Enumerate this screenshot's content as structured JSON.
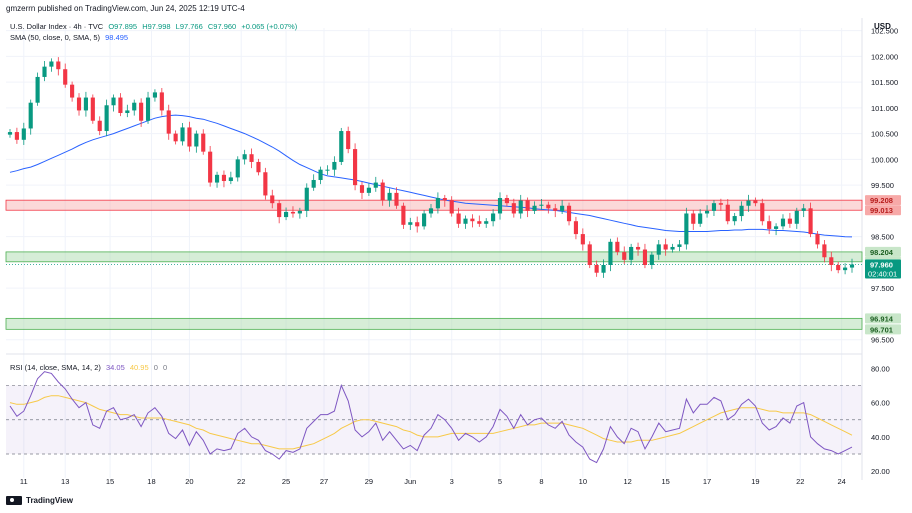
{
  "header": {
    "published": "gmzerrn published on TradingView.com, Jun 24, 2025 12:19 UTC-4",
    "currency": "USD"
  },
  "legend": {
    "symbol": "U.S. Dollar Index · 4h · TVC",
    "open": "O97.895",
    "high": "H97.998",
    "low": "L97.766",
    "close": "C97.960",
    "change": "+0.065 (+0.07%)",
    "sma_label": "SMA (50, close, 0, SMA, 5)",
    "sma_value": "98.495",
    "rsi_label": "RSI (14, close, SMA, 14, 2)",
    "rsi_value": "34.05",
    "rsi_sma_value": "40.95",
    "rsi_extra_1": "0",
    "rsi_extra_2": "0"
  },
  "footer": {
    "brand": "TradingView"
  },
  "colors": {
    "up": "#089981",
    "down": "#f23645",
    "sma": "#2962ff",
    "rsi": "#7e57c2",
    "rsi_ma": "#f7c948",
    "resistance_zone": "#f7a9a8",
    "support_zone": "#a5d6a7"
  },
  "chart_data": {
    "type": "candlestick",
    "y_axis": {
      "ticks": [
        "102.500",
        "102.000",
        "101.500",
        "101.000",
        "100.500",
        "100.000",
        "99.500",
        "98.500",
        "97.500",
        "96.500"
      ],
      "tick_values": [
        102.5,
        102.0,
        101.5,
        101.0,
        100.5,
        100.0,
        99.5,
        98.5,
        97.5,
        96.5
      ],
      "ylim": [
        96.3,
        102.55
      ]
    },
    "x_axis": {
      "ticks": [
        "11",
        "13",
        "15",
        "18",
        "20",
        "22",
        "25",
        "27",
        "29",
        "Jun",
        "3",
        "5",
        "8",
        "10",
        "12",
        "15",
        "17",
        "19",
        "22",
        "24"
      ],
      "tick_index": [
        2,
        8,
        14.5,
        20.5,
        26,
        33.5,
        40,
        45.5,
        52,
        58,
        64,
        71,
        77,
        83,
        89.5,
        95,
        101,
        108,
        114.5,
        120.5
      ],
      "bar_count": 123
    },
    "zones": [
      {
        "name": "resistance",
        "top": 99.208,
        "bottom": 99.013,
        "top_label": "99.208",
        "bottom_label": "99.013"
      },
      {
        "name": "support",
        "top": 98.204,
        "bottom": 98.012,
        "top_label": "98.204",
        "bottom_label": "98.012"
      },
      {
        "name": "support-low",
        "top": 96.914,
        "bottom": 96.701,
        "top_label": "96.914",
        "bottom_label": "96.701"
      }
    ],
    "last_price": {
      "value": 97.96,
      "label": "97.960",
      "countdown": "02:40:01"
    },
    "closes": [
      100.53,
      100.38,
      100.6,
      101.1,
      101.6,
      101.8,
      101.9,
      101.75,
      101.45,
      101.2,
      100.95,
      101.2,
      100.75,
      100.55,
      101.05,
      101.2,
      100.9,
      100.95,
      101.1,
      100.75,
      101.2,
      101.3,
      100.95,
      100.5,
      100.35,
      100.62,
      100.25,
      100.5,
      100.15,
      99.55,
      99.7,
      99.58,
      99.65,
      100.0,
      100.1,
      99.95,
      99.75,
      99.3,
      99.15,
      98.88,
      98.98,
      98.95,
      99.0,
      99.45,
      99.6,
      99.8,
      99.8,
      99.95,
      100.55,
      100.2,
      99.5,
      99.35,
      99.45,
      99.55,
      99.2,
      99.35,
      99.1,
      98.73,
      98.78,
      98.7,
      98.95,
      99.05,
      99.25,
      99.2,
      98.95,
      98.75,
      98.85,
      98.8,
      98.75,
      98.8,
      98.95,
      99.25,
      99.15,
      98.95,
      99.2,
      99.0,
      99.1,
      99.12,
      99.05,
      99.0,
      99.1,
      98.8,
      98.55,
      98.35,
      97.95,
      97.8,
      97.95,
      98.4,
      98.2,
      98.05,
      98.3,
      98.25,
      97.95,
      98.15,
      98.35,
      98.25,
      98.3,
      98.35,
      98.95,
      98.75,
      98.95,
      99.0,
      99.15,
      99.12,
      98.8,
      98.9,
      99.1,
      99.2,
      99.15,
      98.8,
      98.65,
      98.7,
      98.85,
      98.75,
      99.0,
      99.05,
      98.55,
      98.35,
      98.1,
      97.95,
      97.85,
      97.9,
      97.96
    ],
    "sma_50": {
      "index_start": 0,
      "values": [
        99.75,
        99.78,
        99.82,
        99.85,
        99.9,
        99.96,
        100.02,
        100.08,
        100.14,
        100.2,
        100.27,
        100.33,
        100.38,
        100.42,
        100.46,
        100.5,
        100.55,
        100.6,
        100.65,
        100.7,
        100.75,
        100.8,
        100.83,
        100.85,
        100.86,
        100.85,
        100.83,
        100.8,
        100.78,
        100.74,
        100.7,
        100.65,
        100.6,
        100.55,
        100.5,
        100.44,
        100.38,
        100.31,
        100.24,
        100.16,
        100.07,
        99.98,
        99.9,
        99.84,
        99.78,
        99.72,
        99.68,
        99.66,
        99.64,
        99.62,
        99.6,
        99.57,
        99.54,
        99.51,
        99.48,
        99.45,
        99.42,
        99.39,
        99.36,
        99.33,
        99.3,
        99.27,
        99.24,
        99.21,
        99.19,
        99.17,
        99.15,
        99.14,
        99.13,
        99.12,
        99.11,
        99.1,
        99.09,
        99.08,
        99.07,
        99.06,
        99.04,
        99.03,
        99.02,
        99.01,
        98.99,
        98.97,
        98.95,
        98.93,
        98.91,
        98.88,
        98.85,
        98.82,
        98.79,
        98.76,
        98.73,
        98.7,
        98.68,
        98.66,
        98.64,
        98.62,
        98.61,
        98.6,
        98.6,
        98.6,
        98.6,
        98.6,
        98.61,
        98.62,
        98.62,
        98.63,
        98.63,
        98.64,
        98.64,
        98.64,
        98.63,
        98.62,
        98.62,
        98.61,
        98.6,
        98.59,
        98.57,
        98.55,
        98.53,
        98.52,
        98.51,
        98.5,
        98.495
      ]
    },
    "rsi": {
      "ticks": [
        "80.00",
        "60.00",
        "40.00",
        "20.00"
      ],
      "tick_values": [
        80,
        60,
        40,
        20
      ],
      "ylim": [
        16,
        86
      ],
      "upper_band": 70,
      "middle_band": 50,
      "lower_band": 30,
      "values": [
        58,
        52,
        55,
        64,
        74,
        78,
        77,
        72,
        68,
        62,
        57,
        60,
        47,
        45,
        55,
        57,
        50,
        51,
        53,
        46,
        54,
        57,
        52,
        42,
        39,
        44,
        35,
        43,
        38,
        30,
        33,
        32,
        33,
        42,
        45,
        40,
        38,
        32,
        30,
        27,
        32,
        31,
        33,
        45,
        49,
        53,
        53,
        55,
        70,
        61,
        44,
        40,
        43,
        48,
        38,
        43,
        38,
        33,
        35,
        32,
        41,
        45,
        53,
        50,
        45,
        38,
        42,
        40,
        37,
        40,
        46,
        56,
        52,
        45,
        53,
        47,
        50,
        51,
        47,
        45,
        49,
        41,
        37,
        34,
        27,
        25,
        33,
        46,
        40,
        36,
        45,
        43,
        33,
        40,
        48,
        43,
        44,
        45,
        62,
        54,
        59,
        59,
        63,
        61,
        50,
        53,
        59,
        62,
        58,
        48,
        44,
        46,
        51,
        48,
        58,
        60,
        40,
        36,
        33,
        32,
        30,
        32,
        34.05
      ],
      "sma_values": [
        60,
        59,
        59,
        60,
        61,
        63,
        64,
        64,
        63,
        62,
        61,
        60,
        58,
        56,
        55,
        54,
        53,
        53,
        52,
        51,
        51,
        51,
        51,
        50,
        49,
        48,
        47,
        45,
        44,
        42,
        41,
        40,
        39,
        38,
        37,
        36,
        36,
        35,
        34,
        33,
        33,
        33,
        34,
        35,
        36,
        38,
        40,
        42,
        45,
        47,
        49,
        50,
        50,
        49,
        48,
        47,
        46,
        44,
        43,
        41,
        40,
        40,
        40,
        41,
        42,
        42,
        42,
        42,
        42,
        42,
        42,
        43,
        44,
        45,
        46,
        47,
        47,
        48,
        48,
        48,
        48,
        47,
        46,
        45,
        43,
        41,
        39,
        38,
        37,
        37,
        37,
        38,
        38,
        38,
        39,
        40,
        41,
        42,
        44,
        46,
        48,
        50,
        52,
        54,
        55,
        56,
        57,
        57,
        57,
        56,
        55,
        55,
        54,
        54,
        54,
        54,
        53,
        51,
        49,
        47,
        45,
        43,
        40.95
      ]
    }
  }
}
